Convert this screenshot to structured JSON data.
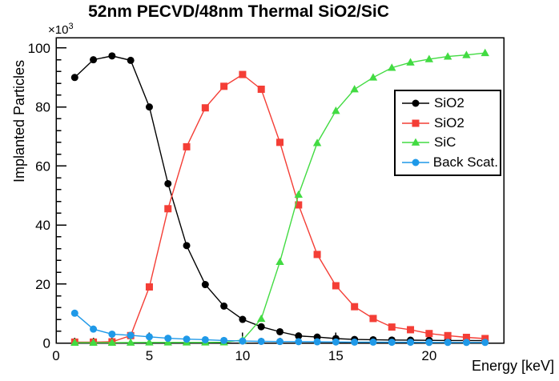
{
  "chart_data": {
    "type": "line",
    "title": "52nm PECVD/48nm Thermal SiO2/SiC",
    "xlabel": "Energy [keV]",
    "ylabel": "Implanted Particles",
    "y_exponent": {
      "text": "×10",
      "sup": "3"
    },
    "y_unit_multiplier": 1000,
    "xlim": [
      0,
      24
    ],
    "ylim": [
      0,
      103.5
    ],
    "x_ticks": [
      0,
      5,
      10,
      15,
      20
    ],
    "y_ticks": [
      0,
      20,
      40,
      60,
      80,
      100
    ],
    "x_minor_step": 1,
    "y_minor_step": 4,
    "grid": false,
    "legend_position": "middle-right",
    "x": [
      1,
      2,
      3,
      4,
      5,
      6,
      7,
      8,
      9,
      10,
      11,
      12,
      13,
      14,
      15,
      16,
      17,
      18,
      19,
      20,
      21,
      22,
      23
    ],
    "series": [
      {
        "name": "SiO2",
        "color": "#000000",
        "marker": "circle",
        "values": [
          90.0,
          96.0,
          97.3,
          95.8,
          80.0,
          54.0,
          33.0,
          19.8,
          12.5,
          8.0,
          5.5,
          3.8,
          2.4,
          2.0,
          1.5,
          1.2,
          1.1,
          1.0,
          0.95,
          0.9,
          0.85,
          0.85,
          0.8
        ]
      },
      {
        "name": "SiO2",
        "color": "#f43e36",
        "marker": "square",
        "values": [
          0.3,
          0.3,
          0.4,
          2.5,
          19.0,
          45.5,
          66.5,
          79.7,
          87.0,
          91.0,
          86.0,
          68.0,
          46.8,
          30.0,
          19.4,
          12.3,
          8.3,
          5.4,
          4.5,
          3.2,
          2.5,
          1.9,
          1.5
        ]
      },
      {
        "name": "SiC",
        "color": "#42db42",
        "marker": "triangle",
        "values": [
          0.1,
          0.1,
          0.1,
          0.15,
          0.2,
          0.2,
          0.2,
          0.2,
          0.25,
          1.0,
          8.2,
          27.5,
          50.3,
          67.8,
          78.7,
          86.0,
          90.0,
          93.3,
          95.1,
          96.2,
          97.1,
          97.6,
          98.3
        ]
      },
      {
        "name": "Back Scat.",
        "color": "#1f99e8",
        "marker": "circle",
        "values": [
          10.1,
          4.7,
          3.0,
          2.6,
          2.1,
          1.6,
          1.3,
          1.1,
          0.85,
          0.65,
          0.55,
          0.5,
          0.45,
          0.4,
          0.35,
          0.3,
          0.3,
          0.25,
          0.25,
          0.2,
          0.2,
          0.2,
          0.2
        ]
      }
    ]
  }
}
